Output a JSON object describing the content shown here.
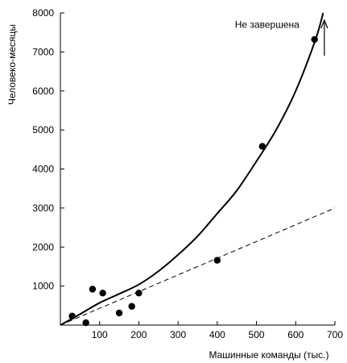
{
  "chart_data": {
    "type": "scatter",
    "title": "",
    "xlabel": "Машинные команды (тыс.)",
    "ylabel": "Человеко-месяцы",
    "xlim": [
      0,
      700
    ],
    "ylim": [
      0,
      8000
    ],
    "x_ticks": [
      100,
      200,
      300,
      400,
      500,
      600,
      700
    ],
    "y_ticks": [
      1000,
      2000,
      3000,
      4000,
      5000,
      6000,
      7000,
      8000
    ],
    "grid": false,
    "points": [
      {
        "x": 30,
        "y": 230
      },
      {
        "x": 65,
        "y": 60
      },
      {
        "x": 82,
        "y": 920
      },
      {
        "x": 108,
        "y": 820
      },
      {
        "x": 150,
        "y": 310
      },
      {
        "x": 182,
        "y": 480
      },
      {
        "x": 200,
        "y": 820
      },
      {
        "x": 400,
        "y": 1660
      },
      {
        "x": 515,
        "y": 4580
      },
      {
        "x": 648,
        "y": 7320
      }
    ],
    "series": [
      {
        "style": "solid",
        "x": [
          0,
          50,
          100,
          150,
          200,
          250,
          300,
          350,
          400,
          450,
          500,
          550,
          600,
          650,
          670
        ],
        "y": [
          0,
          280,
          570,
          800,
          1040,
          1380,
          1800,
          2280,
          2860,
          3450,
          4200,
          5000,
          6000,
          7300,
          8000
        ]
      },
      {
        "style": "dashed",
        "x": [
          0,
          700
        ],
        "y": [
          0,
          3000
        ]
      }
    ],
    "annotations": [
      {
        "text": "Не завершена",
        "x": 445,
        "y": 7700
      },
      {
        "arrow": "up",
        "x": 673,
        "y": 7400
      }
    ]
  }
}
